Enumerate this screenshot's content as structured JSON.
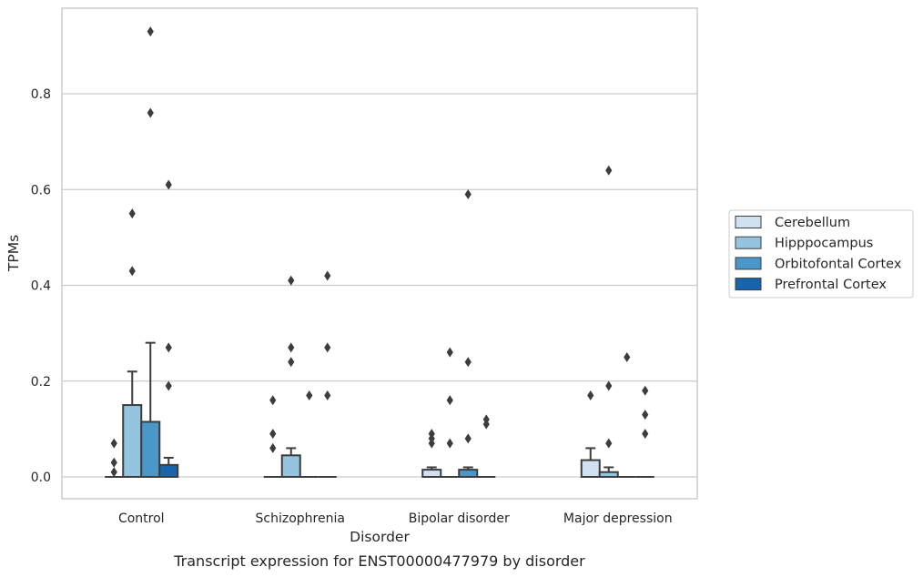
{
  "caption": "Transcript expression for ENST00000477979 by disorder",
  "chart_data": {
    "type": "box",
    "xlabel": "Disorder",
    "ylabel": "TPMs",
    "ylim": [
      -0.045,
      0.985
    ],
    "yticks": [
      "0.0",
      "0.2",
      "0.4",
      "0.6",
      "0.8"
    ],
    "ytick_values": [
      0.0,
      0.2,
      0.4,
      0.6,
      0.8
    ],
    "grid": "horizontal",
    "legend_position": "right",
    "categories": [
      "Control",
      "Schizophrenia",
      "Bipolar disorder",
      "Major depression"
    ],
    "series": [
      {
        "name": "Cerebellum",
        "color": "#d0e1f2",
        "boxes": [
          {
            "q1": 0,
            "median": 0,
            "q3": 0,
            "whisker_low": 0,
            "whisker_high": 0,
            "outliers": [
              0.07,
              0.03,
              0.01
            ]
          },
          {
            "q1": 0,
            "median": 0,
            "q3": 0,
            "whisker_low": 0,
            "whisker_high": 0,
            "outliers": [
              0.16,
              0.09,
              0.06
            ]
          },
          {
            "q1": 0,
            "median": 0,
            "q3": 0.015,
            "whisker_low": 0,
            "whisker_high": 0.02,
            "outliers": [
              0.09,
              0.08,
              0.07
            ]
          },
          {
            "q1": 0,
            "median": 0,
            "q3": 0.035,
            "whisker_low": 0,
            "whisker_high": 0.06,
            "outliers": [
              0.17
            ]
          }
        ]
      },
      {
        "name": "Hipppocampus",
        "color": "#94c4df",
        "boxes": [
          {
            "q1": 0,
            "median": 0,
            "q3": 0.15,
            "whisker_low": 0,
            "whisker_high": 0.22,
            "outliers": [
              0.55,
              0.43
            ]
          },
          {
            "q1": 0,
            "median": 0,
            "q3": 0.045,
            "whisker_low": 0,
            "whisker_high": 0.06,
            "outliers": [
              0.41,
              0.27,
              0.24
            ]
          },
          {
            "q1": 0,
            "median": 0,
            "q3": 0,
            "whisker_low": 0,
            "whisker_high": 0,
            "outliers": [
              0.26,
              0.16,
              0.07
            ]
          },
          {
            "q1": 0,
            "median": 0,
            "q3": 0.01,
            "whisker_low": 0,
            "whisker_high": 0.02,
            "outliers": [
              0.64,
              0.19,
              0.07
            ]
          }
        ]
      },
      {
        "name": "Orbitofontal Cortex",
        "color": "#4a98c9",
        "boxes": [
          {
            "q1": 0,
            "median": 0,
            "q3": 0.115,
            "whisker_low": 0,
            "whisker_high": 0.28,
            "outliers": [
              0.93,
              0.76
            ]
          },
          {
            "q1": 0,
            "median": 0,
            "q3": 0,
            "whisker_low": 0,
            "whisker_high": 0,
            "outliers": [
              0.17
            ]
          },
          {
            "q1": 0,
            "median": 0,
            "q3": 0.015,
            "whisker_low": 0,
            "whisker_high": 0.02,
            "outliers": [
              0.59,
              0.24,
              0.08
            ]
          },
          {
            "q1": 0,
            "median": 0,
            "q3": 0,
            "whisker_low": 0,
            "whisker_high": 0,
            "outliers": [
              0.25
            ]
          }
        ]
      },
      {
        "name": "Prefrontal Cortex",
        "color": "#1764ab",
        "boxes": [
          {
            "q1": 0,
            "median": 0,
            "q3": 0.025,
            "whisker_low": 0,
            "whisker_high": 0.04,
            "outliers": [
              0.61,
              0.27,
              0.19
            ]
          },
          {
            "q1": 0,
            "median": 0,
            "q3": 0,
            "whisker_low": 0,
            "whisker_high": 0,
            "outliers": [
              0.42,
              0.27,
              0.17
            ]
          },
          {
            "q1": 0,
            "median": 0,
            "q3": 0,
            "whisker_low": 0,
            "whisker_high": 0,
            "outliers": [
              0.12,
              0.11
            ]
          },
          {
            "q1": 0,
            "median": 0,
            "q3": 0,
            "whisker_low": 0,
            "whisker_high": 0,
            "outliers": [
              0.18,
              0.13,
              0.09
            ]
          }
        ]
      }
    ]
  }
}
